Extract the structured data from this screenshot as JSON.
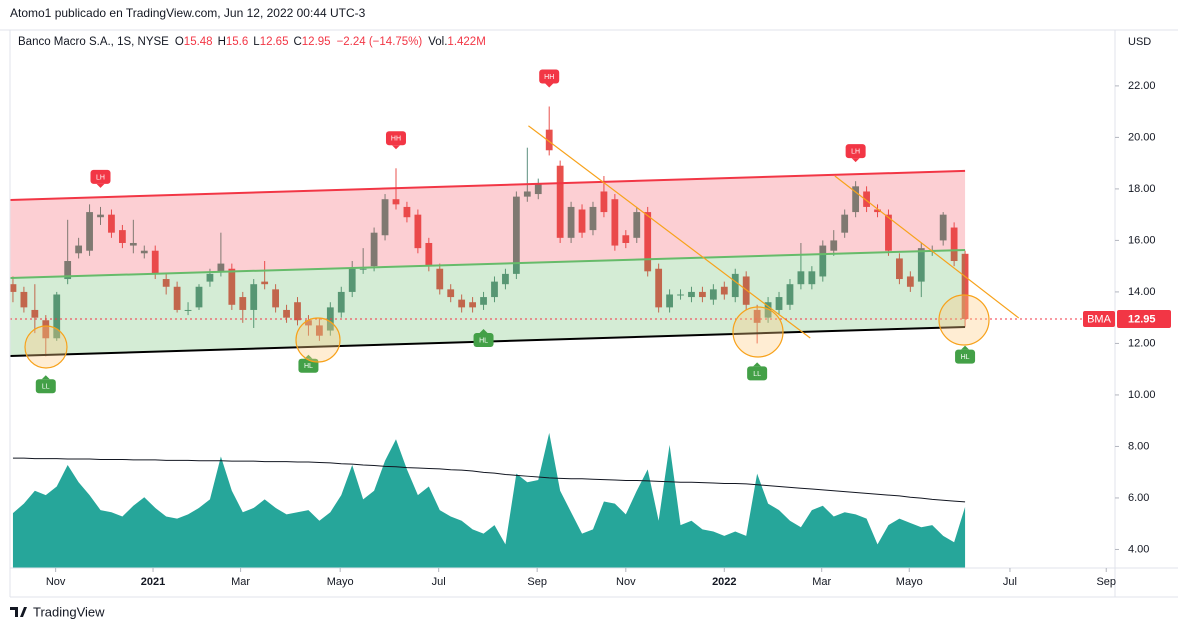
{
  "header": {
    "text": "Atomo1 publicado en TradingView.com, Jun 12, 2022 00:44 UTC-3"
  },
  "footer": {
    "brand": "TradingView"
  },
  "chart_data": {
    "type": "candlestick",
    "title": "Banco Macro S.A., 1S, NYSE",
    "legend_letters": [
      "O",
      "H",
      "L",
      "C"
    ],
    "change_label": "−2.24 (−14.75%)",
    "volume_prefix": "Vol.",
    "volume_label": "1.422M",
    "currency": "USD",
    "symbol": "BMA",
    "up_color": "#5b8f7f",
    "down_color": "#e8504c",
    "x": [
      0,
      1,
      2,
      3,
      4,
      5,
      6,
      7,
      8,
      9,
      10,
      11,
      12,
      13,
      14,
      15,
      16,
      17,
      18,
      19,
      20,
      21,
      22,
      23,
      24,
      25,
      26,
      27,
      28,
      29,
      30,
      31,
      32,
      33,
      34,
      35,
      36,
      37,
      38,
      39,
      40,
      41,
      42,
      43,
      44,
      45,
      46,
      47,
      48,
      49,
      50,
      51,
      52,
      53,
      54,
      55,
      56,
      57,
      58,
      59,
      60,
      61,
      62,
      63,
      64,
      65,
      66,
      67,
      68,
      69,
      70,
      71,
      72,
      73,
      74,
      75,
      76,
      77,
      78,
      79,
      80,
      81,
      82,
      83,
      84,
      85,
      86,
      87
    ],
    "open": [
      14.3,
      14.0,
      13.3,
      12.9,
      12.2,
      14.5,
      15.5,
      15.6,
      16.9,
      17.0,
      16.4,
      15.8,
      15.5,
      15.6,
      14.5,
      14.2,
      13.3,
      13.4,
      14.4,
      14.8,
      14.9,
      13.8,
      13.3,
      14.4,
      14.1,
      13.3,
      13.6,
      12.9,
      12.7,
      12.5,
      13.2,
      14.0,
      14.9,
      15.0,
      16.2,
      17.6,
      17.3,
      17.0,
      15.9,
      14.9,
      14.1,
      13.7,
      13.6,
      13.5,
      13.8,
      14.3,
      14.7,
      17.7,
      17.8,
      20.3,
      18.9,
      16.1,
      17.2,
      16.4,
      17.9,
      17.6,
      16.2,
      16.1,
      17.1,
      14.9,
      13.4,
      13.9,
      13.8,
      14.0,
      13.7,
      14.2,
      13.8,
      14.6,
      13.3,
      13.0,
      13.3,
      13.5,
      14.3,
      14.3,
      14.6,
      15.6,
      16.3,
      17.1,
      17.9,
      17.2,
      17.0,
      15.3,
      14.6,
      14.4,
      15.6,
      16.0,
      16.5,
      15.48
    ],
    "high": [
      14.6,
      14.2,
      14.3,
      13.1,
      14.0,
      16.8,
      16.1,
      17.4,
      17.3,
      17.2,
      16.6,
      16.8,
      15.8,
      15.8,
      14.7,
      14.4,
      13.6,
      14.3,
      14.9,
      16.3,
      15.1,
      14.0,
      14.5,
      15.2,
      14.3,
      13.5,
      13.8,
      13.1,
      13.0,
      13.6,
      14.2,
      15.2,
      15.7,
      16.5,
      17.8,
      18.8,
      17.5,
      17.2,
      16.1,
      15.1,
      14.3,
      13.9,
      13.8,
      14.0,
      14.6,
      14.9,
      17.9,
      19.6,
      18.4,
      21.2,
      19.1,
      17.5,
      17.4,
      17.5,
      18.5,
      17.8,
      16.4,
      17.3,
      17.3,
      15.1,
      14.1,
      14.1,
      14.2,
      14.2,
      14.3,
      14.4,
      14.9,
      14.8,
      13.5,
      13.8,
      14.0,
      14.5,
      15.9,
      15.0,
      16.0,
      16.4,
      17.2,
      18.3,
      18.1,
      17.4,
      17.2,
      15.5,
      14.8,
      15.9,
      15.8,
      17.1,
      16.7,
      15.6
    ],
    "low": [
      13.6,
      13.2,
      12.4,
      11.5,
      12.1,
      14.3,
      15.3,
      15.4,
      16.6,
      16.1,
      15.7,
      15.5,
      15.3,
      14.5,
      13.9,
      13.2,
      13.1,
      13.3,
      14.2,
      14.6,
      13.3,
      12.8,
      12.6,
      14.1,
      13.2,
      12.8,
      12.7,
      12.3,
      12.1,
      12.3,
      13.0,
      13.8,
      14.7,
      14.8,
      16.0,
      17.2,
      16.7,
      15.5,
      14.8,
      13.9,
      13.6,
      13.2,
      13.2,
      13.3,
      13.6,
      14.1,
      14.5,
      17.5,
      17.6,
      19.3,
      15.9,
      15.9,
      16.1,
      16.2,
      16.9,
      15.6,
      15.7,
      15.9,
      14.6,
      13.2,
      13.2,
      13.7,
      13.6,
      13.6,
      13.5,
      13.7,
      13.6,
      13.3,
      12.0,
      12.8,
      13.1,
      13.3,
      14.1,
      14.1,
      14.4,
      15.4,
      16.1,
      16.9,
      17.1,
      16.9,
      15.4,
      14.3,
      14.0,
      13.8,
      15.4,
      15.8,
      15.0,
      12.65
    ],
    "close": [
      14.0,
      13.4,
      13.0,
      12.2,
      13.9,
      15.2,
      15.8,
      17.1,
      17.0,
      16.3,
      15.9,
      15.9,
      15.6,
      14.7,
      14.2,
      13.3,
      13.3,
      14.2,
      14.7,
      15.1,
      13.5,
      13.3,
      14.3,
      14.3,
      13.4,
      13.0,
      12.9,
      12.7,
      12.3,
      13.4,
      14.0,
      14.9,
      14.9,
      16.3,
      17.6,
      17.4,
      16.9,
      15.7,
      15.0,
      14.1,
      13.8,
      13.4,
      13.4,
      13.8,
      14.4,
      14.7,
      17.7,
      17.9,
      18.2,
      19.5,
      16.1,
      17.3,
      16.3,
      17.3,
      17.1,
      15.8,
      15.9,
      17.1,
      14.8,
      13.4,
      13.9,
      13.9,
      14.0,
      13.8,
      14.1,
      13.9,
      14.7,
      13.5,
      12.8,
      13.6,
      13.8,
      14.3,
      14.8,
      14.8,
      15.8,
      16.0,
      17.0,
      18.1,
      17.3,
      17.1,
      15.6,
      14.5,
      14.2,
      15.7,
      15.6,
      17.0,
      15.2,
      12.95
    ],
    "volume": {
      "color": "#26a69a",
      "lim": [
        0,
        12.54
      ],
      "values": [
        1.28,
        1.5,
        1.8,
        1.7,
        1.9,
        2.4,
        2.0,
        1.7,
        1.35,
        1.3,
        1.2,
        1.45,
        1.65,
        1.4,
        1.2,
        1.15,
        1.25,
        1.4,
        1.6,
        2.6,
        1.8,
        1.3,
        1.4,
        1.6,
        1.4,
        1.25,
        1.3,
        1.35,
        1.1,
        1.3,
        1.7,
        2.4,
        1.6,
        1.8,
        2.5,
        3.0,
        2.3,
        1.7,
        1.9,
        1.35,
        1.2,
        1.1,
        0.9,
        0.8,
        1.0,
        0.55,
        2.2,
        2.0,
        2.05,
        3.15,
        1.8,
        1.3,
        0.8,
        0.9,
        1.55,
        1.5,
        1.25,
        1.8,
        2.3,
        1.1,
        2.87,
        1.0,
        1.1,
        0.9,
        0.85,
        0.75,
        0.85,
        0.75,
        2.2,
        1.5,
        1.35,
        1.1,
        0.95,
        1.35,
        1.45,
        1.2,
        1.3,
        1.25,
        1.15,
        0.55,
        1.0,
        1.15,
        1.05,
        0.95,
        1.0,
        0.75,
        0.6,
        1.422
      ],
      "ma_color": "#131722",
      "ma": [
        2.56,
        2.56,
        2.55,
        2.55,
        2.55,
        2.54,
        2.54,
        2.54,
        2.53,
        2.53,
        2.53,
        2.52,
        2.52,
        2.52,
        2.51,
        2.51,
        2.51,
        2.5,
        2.5,
        2.5,
        2.49,
        2.49,
        2.49,
        2.48,
        2.48,
        2.48,
        2.47,
        2.47,
        2.46,
        2.45,
        2.43,
        2.42,
        2.4,
        2.39,
        2.37,
        2.36,
        2.34,
        2.33,
        2.32,
        2.31,
        2.29,
        2.28,
        2.26,
        2.23,
        2.21,
        2.18,
        2.16,
        2.14,
        2.12,
        2.1,
        2.09,
        2.08,
        2.08,
        2.07,
        2.06,
        2.05,
        2.04,
        2.04,
        2.03,
        2.02,
        2.01,
        2.0,
        2.0,
        1.99,
        1.98,
        1.97,
        1.97,
        1.96,
        1.94,
        1.92,
        1.9,
        1.88,
        1.86,
        1.84,
        1.82,
        1.8,
        1.78,
        1.76,
        1.74,
        1.72,
        1.7,
        1.68,
        1.65,
        1.63,
        1.6,
        1.58,
        1.56,
        1.54
      ]
    },
    "channel_lines": [
      {
        "color": "#f23645",
        "points": [
          [
            -0.27,
            17.57
          ],
          [
            87,
            18.7
          ]
        ]
      },
      {
        "color": "#66bb6a",
        "points": [
          [
            -0.27,
            14.54
          ],
          [
            87,
            15.63
          ]
        ]
      },
      {
        "color": "#000000",
        "points": [
          [
            -0.27,
            11.51
          ],
          [
            87,
            12.64
          ]
        ]
      }
    ],
    "channel_fills": [
      "#f23645",
      "#4caf50"
    ],
    "trendlines": [
      {
        "color": "#f7a21b",
        "points": [
          [
            47.1,
            20.45
          ],
          [
            72.85,
            12.21
          ]
        ]
      },
      {
        "color": "#f7a21b",
        "points": [
          [
            75.1,
            18.5
          ],
          [
            91.9,
            12.99
          ]
        ]
      }
    ],
    "last_price_color": "#f23645",
    "pivots": [
      {
        "label": "LH",
        "index": 8,
        "position": "above",
        "color": "#f23645"
      },
      {
        "label": "HH",
        "index": 35,
        "position": "above",
        "color": "#f23645"
      },
      {
        "label": "HH",
        "index": 49,
        "position": "above",
        "color": "#f23645"
      },
      {
        "label": "LH",
        "index": 77,
        "position": "above",
        "color": "#f23645"
      },
      {
        "label": "LL",
        "index": 3,
        "position": "below",
        "color": "#43a047"
      },
      {
        "label": "HL",
        "index": 27,
        "position": "below",
        "color": "#43a047"
      },
      {
        "label": "HL",
        "index": 43,
        "position": "below",
        "color": "#43a047"
      },
      {
        "label": "LL",
        "index": 68,
        "position": "below",
        "color": "#43a047"
      },
      {
        "label": "HL",
        "index": 87,
        "position": "below",
        "color": "#43a047"
      }
    ],
    "xlim": [
      -0.27,
      100.7
    ],
    "xticks": [
      {
        "value": 3.9,
        "label": "Nov"
      },
      {
        "value": 12.8,
        "label": "2021"
      },
      {
        "value": 20.8,
        "label": "Mar"
      },
      {
        "value": 29.9,
        "label": "Mayo"
      },
      {
        "value": 38.9,
        "label": "Jul"
      },
      {
        "value": 47.9,
        "label": "Sep"
      },
      {
        "value": 56.0,
        "label": "Nov"
      },
      {
        "value": 65.0,
        "label": "2022"
      },
      {
        "value": 73.9,
        "label": "Mar"
      },
      {
        "value": 81.9,
        "label": "Mayo"
      },
      {
        "value": 91.1,
        "label": "Jul"
      },
      {
        "value": 99.9,
        "label": "Sep"
      }
    ],
    "ylim": [
      3.28,
      24.17
    ],
    "yticks": [
      {
        "value": 4,
        "label": "4.00"
      },
      {
        "value": 6,
        "label": "6.00"
      },
      {
        "value": 8,
        "label": "8.00"
      },
      {
        "value": 10,
        "label": "10.00"
      },
      {
        "value": 12,
        "label": "12.00"
      },
      {
        "value": 14,
        "label": "14.00"
      },
      {
        "value": 16,
        "label": "16.00"
      },
      {
        "value": 18,
        "label": "18.00"
      },
      {
        "value": 20,
        "label": "20.00"
      },
      {
        "value": 22,
        "label": "22.00"
      }
    ],
    "grid": false
  }
}
